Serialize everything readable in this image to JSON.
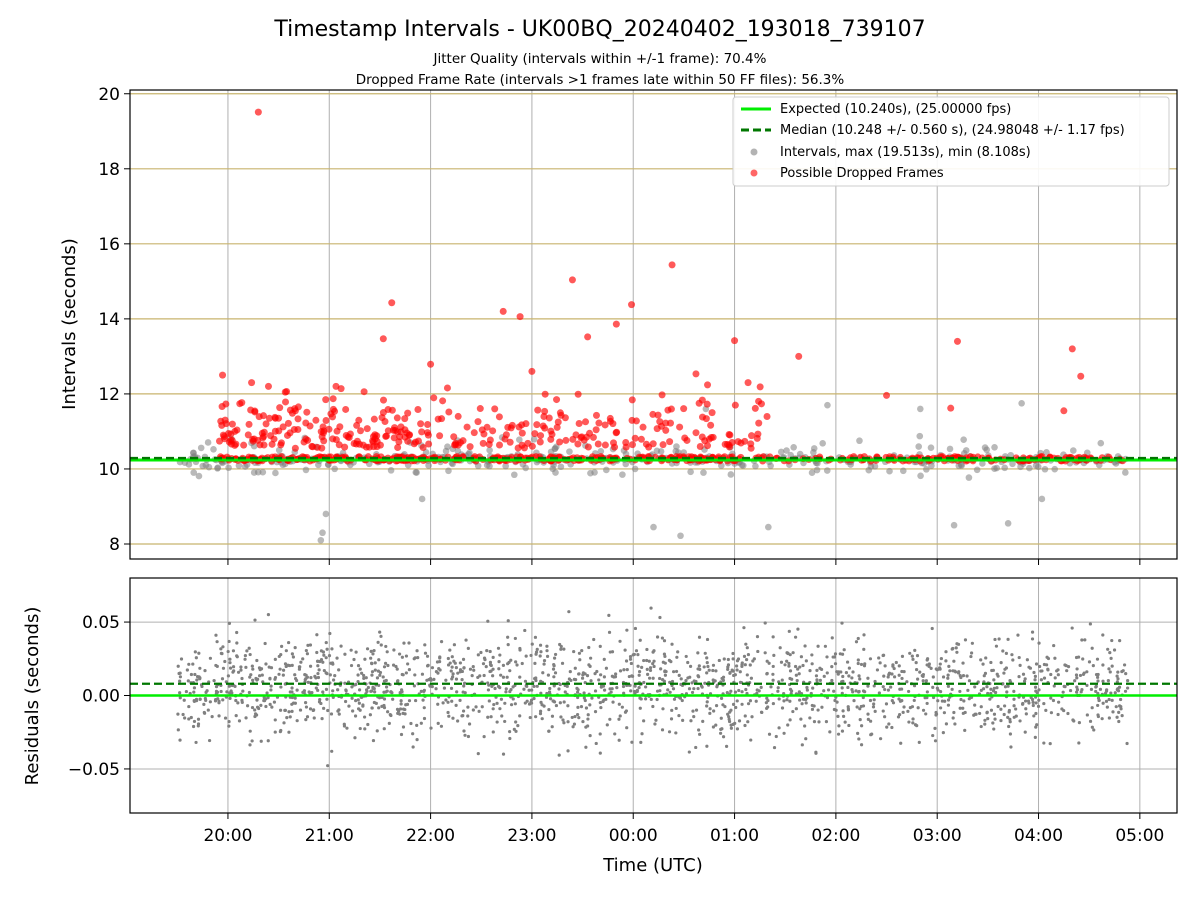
{
  "title": "Timestamp Intervals - UK00BQ_20240402_193018_739107",
  "subtitle_1": "Jitter Quality (intervals within +/-1 frame): 70.4%",
  "subtitle_2": "Dropped Frame Rate (intervals >1 frames late within 50 FF files): 56.3%",
  "colors": {
    "expected": "#00ee00",
    "median": "#007700",
    "intervals": "#808080",
    "dropped": "#ff0000",
    "upper_grid": "#c8b46e",
    "grid": "#b0b0b0"
  },
  "chart_data": [
    {
      "type": "scatter",
      "ylabel": "Intervals (seconds)",
      "ylim": [
        7.6,
        20.1
      ],
      "xlim": [
        "19:02",
        "05:22"
      ],
      "y_ticks": [
        "8",
        "10",
        "12",
        "14",
        "16",
        "18",
        "20"
      ],
      "expected_y": 10.24,
      "median_y": 10.248,
      "legend_position": "upper right",
      "legend": [
        "Expected (10.240s), (25.00000 fps)",
        "Median (10.248 +/- 0.560 s), (24.98048 +/- 1.17 fps)",
        "Intervals, max (19.513s), min (8.108s)",
        "Possible Dropped Frames"
      ],
      "series": [
        {
          "name": "Possible Dropped Frames",
          "points": [
            [
              "20:18",
              19.51
            ],
            [
              "21:37",
              14.43
            ],
            [
              "22:43",
              14.2
            ],
            [
              "22:53",
              14.06
            ],
            [
              "23:24",
              15.04
            ],
            [
              "00:23",
              15.44
            ],
            [
              "23:59",
              14.38
            ],
            [
              "01:00",
              13.42
            ],
            [
              "23:33",
              13.52
            ],
            [
              "22:00",
              12.79
            ],
            [
              "21:32",
              13.47
            ],
            [
              "23:50",
              13.86
            ],
            [
              "21:07",
              12.14
            ],
            [
              "23:00",
              12.6
            ],
            [
              "02:30",
              11.96
            ],
            [
              "03:12",
              13.4
            ],
            [
              "04:20",
              13.2
            ],
            [
              "04:25",
              12.47
            ],
            [
              "01:38",
              13.0
            ],
            [
              "20:14",
              12.3
            ],
            [
              "20:24",
              12.2
            ],
            [
              "00:44",
              12.24
            ],
            [
              "01:08",
              12.3
            ],
            [
              "03:08",
              11.62
            ],
            [
              "04:15",
              11.55
            ]
          ],
          "dense_band": {
            "from": "19:55",
            "to": "04:50",
            "y": 10.27
          }
        },
        {
          "name": "Intervals",
          "points": [
            [
              "20:55",
              8.1
            ],
            [
              "20:56",
              8.3
            ],
            [
              "20:58",
              8.8
            ],
            [
              "00:28",
              8.22
            ],
            [
              "03:10",
              8.5
            ],
            [
              "03:42",
              8.55
            ],
            [
              "21:55",
              9.2
            ],
            [
              "04:02",
              9.2
            ],
            [
              "00:12",
              8.45
            ],
            [
              "01:20",
              8.45
            ],
            [
              "02:50",
              11.6
            ],
            [
              "03:50",
              11.75
            ],
            [
              "00:43",
              11.6
            ],
            [
              "01:55",
              11.7
            ]
          ],
          "band": {
            "from": "19:30",
            "to": "04:53",
            "y_min": 8.6,
            "y_max": 11.8
          }
        }
      ]
    },
    {
      "type": "scatter",
      "xlabel": "Time (UTC)",
      "ylabel": "Residuals (seconds)",
      "ylim": [
        -0.08,
        0.08
      ],
      "y_ticks": [
        "0.05",
        "0.00",
        "−0.05"
      ],
      "x_ticks": [
        "20:00",
        "21:00",
        "22:00",
        "23:00",
        "00:00",
        "01:00",
        "02:00",
        "03:00",
        "04:00",
        "05:00"
      ],
      "zero_line": 0.0,
      "median_offset": 0.008,
      "series": [
        {
          "name": "Residuals",
          "band": {
            "from": "19:30",
            "to": "04:53",
            "y_min": -0.08,
            "y_max": 0.08
          }
        }
      ]
    }
  ]
}
